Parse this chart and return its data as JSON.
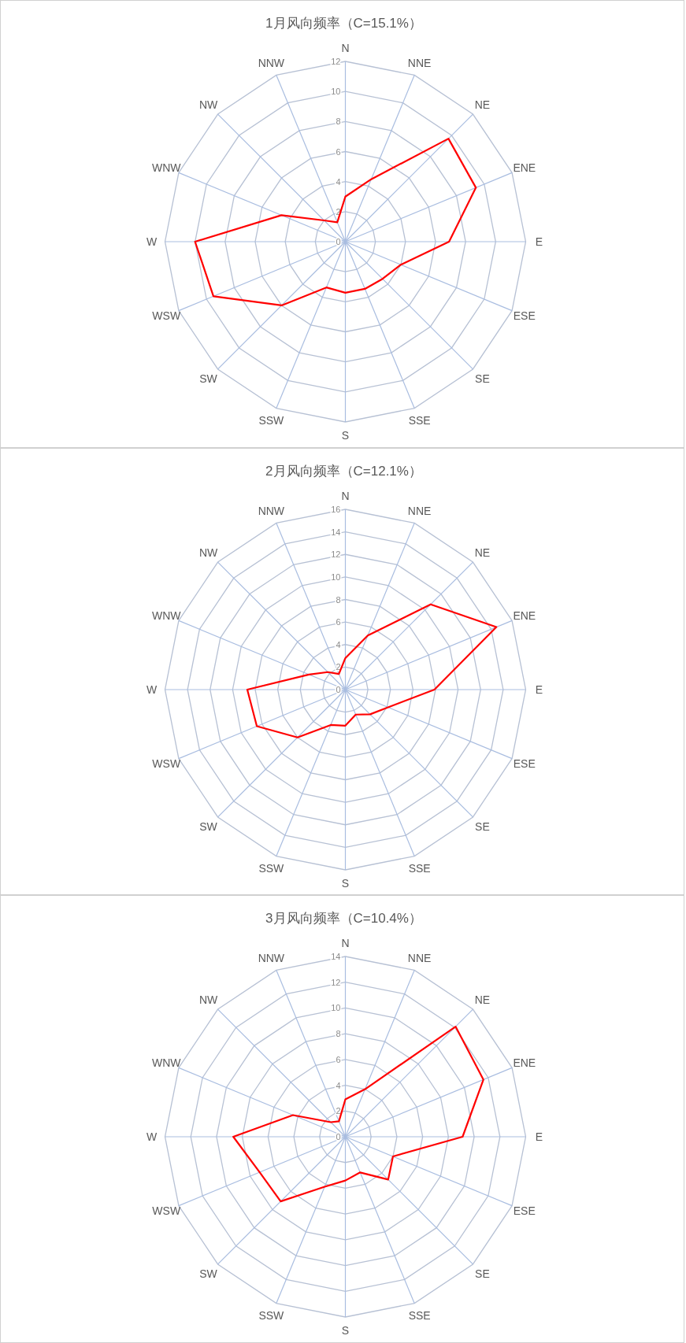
{
  "chart_data": [
    {
      "type": "radar",
      "title": "1月风向频率（C=15.1%）",
      "categories": [
        "N",
        "NNE",
        "NE",
        "ENE",
        "E",
        "ESE",
        "SE",
        "SSE",
        "S",
        "SSW",
        "SW",
        "WSW",
        "W",
        "WNW",
        "NW",
        "NNW"
      ],
      "series": [
        {
          "color": "#ff0000",
          "values": [
            3.0,
            4.5,
            9.7,
            9.4,
            6.9,
            4.0,
            3.5,
            3.4,
            3.4,
            3.3,
            6.0,
            9.5,
            10.0,
            4.6,
            2.0,
            1.4
          ]
        }
      ],
      "ylim": [
        0,
        12
      ],
      "yticks": [
        0,
        2,
        4,
        6,
        8,
        10,
        12
      ],
      "grid": true,
      "marker": "none",
      "line_style": "solid"
    },
    {
      "type": "radar",
      "title": "2月风向频率（C=12.1%）",
      "categories": [
        "N",
        "NNE",
        "NE",
        "ENE",
        "E",
        "ESE",
        "SE",
        "SSE",
        "S",
        "SSW",
        "SW",
        "WSW",
        "W",
        "WNW",
        "NW",
        "NNW"
      ],
      "series": [
        {
          "color": "#ff0000",
          "values": [
            2.8,
            5.2,
            10.7,
            14.5,
            7.9,
            4.1,
            3.1,
            2.4,
            3.2,
            3.4,
            6.0,
            8.5,
            8.7,
            3.5,
            2.2,
            1.5
          ]
        }
      ],
      "ylim": [
        0,
        16
      ],
      "yticks": [
        0,
        2,
        4,
        6,
        8,
        10,
        12,
        14,
        16
      ],
      "grid": true,
      "marker": "none",
      "line_style": "solid"
    },
    {
      "type": "radar",
      "title": "3月风向频率（C=10.4%）",
      "categories": [
        "N",
        "NNE",
        "NE",
        "ENE",
        "E",
        "ESE",
        "SE",
        "SSE",
        "S",
        "SSW",
        "SW",
        "WSW",
        "W",
        "WNW",
        "NW",
        "NNW"
      ],
      "series": [
        {
          "color": "#ff0000",
          "values": [
            2.9,
            4.0,
            12.1,
            11.6,
            9.1,
            4.0,
            4.7,
            3.0,
            3.4,
            4.2,
            7.1,
            7.2,
            8.7,
            4.4,
            1.6,
            1.3
          ]
        }
      ],
      "ylim": [
        0,
        14
      ],
      "yticks": [
        0,
        2,
        4,
        6,
        8,
        10,
        12,
        14
      ],
      "grid": true,
      "marker": "none",
      "line_style": "solid"
    }
  ]
}
